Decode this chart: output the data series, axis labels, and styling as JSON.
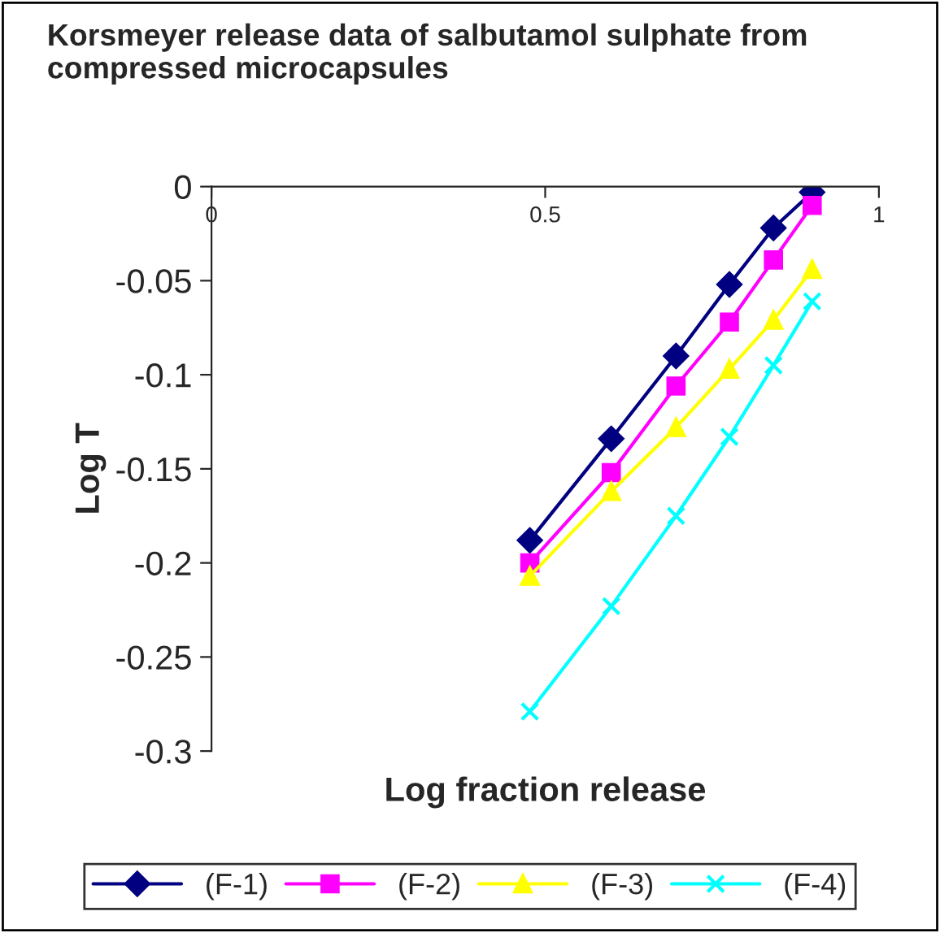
{
  "chart_data": {
    "type": "line",
    "title": "Korsmeyer release data of salbutamol sulphate from compressed microcapsules",
    "xlabel": "Log fraction release",
    "ylabel": "Log T",
    "xlim": [
      0,
      1
    ],
    "xticks": [
      0,
      0.5,
      1
    ],
    "ylim": [
      -0.3,
      0
    ],
    "yticks": [
      0,
      -0.05,
      -0.1,
      -0.15,
      -0.2,
      -0.25,
      -0.3
    ],
    "grid": false,
    "legend": "bottom",
    "x": [
      0.477,
      0.599,
      0.696,
      0.776,
      0.842,
      0.9
    ],
    "series": [
      {
        "name": "(F-1)",
        "color": "#000080",
        "marker": "diamond",
        "values": [
          -0.188,
          -0.134,
          -0.09,
          -0.052,
          -0.022,
          -0.003
        ]
      },
      {
        "name": "(F-2)",
        "color": "#ff00ff",
        "marker": "square",
        "values": [
          -0.2,
          -0.152,
          -0.106,
          -0.072,
          -0.039,
          -0.01
        ]
      },
      {
        "name": "(F-3)",
        "color": "#ffff00",
        "marker": "triangle",
        "values": [
          -0.207,
          -0.162,
          -0.128,
          -0.097,
          -0.071,
          -0.044
        ]
      },
      {
        "name": "(F-4)",
        "color": "#00ffff",
        "marker": "cross",
        "values": [
          -0.279,
          -0.223,
          -0.175,
          -0.133,
          -0.095,
          -0.061
        ]
      }
    ]
  }
}
